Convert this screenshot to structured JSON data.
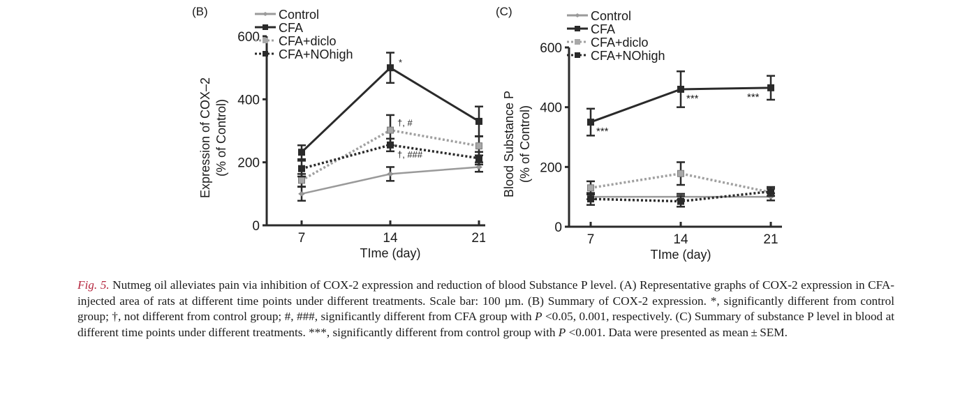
{
  "chart_data": [
    {
      "panel_label": "(B)",
      "type": "line",
      "title": "",
      "xlabel": "TIme (day)",
      "ylabel": "Expression of COX–2",
      "ylabel2": "(% of Control)",
      "x": [
        7,
        14,
        21
      ],
      "x_tick_labels": [
        "7",
        "14",
        "21"
      ],
      "y_ticks": [
        0,
        200,
        400,
        600
      ],
      "ylim": [
        0,
        600
      ],
      "grid": false,
      "legend_position": "top-left",
      "series": [
        {
          "name": "Control",
          "values": [
            100,
            163,
            185
          ],
          "errors": [
            22,
            22,
            15
          ],
          "color": "#9a9a9a",
          "line": "solid",
          "marker": "diamond"
        },
        {
          "name": "CFA",
          "values": [
            232,
            500,
            330
          ],
          "errors": [
            22,
            48,
            47
          ],
          "color": "#2a2a2a",
          "line": "solid",
          "marker": "square"
        },
        {
          "name": "CFA+diclo",
          "values": [
            143,
            302,
            252
          ],
          "errors": [
            20,
            48,
            30
          ],
          "color": "#a0a0a0",
          "line": "dotted",
          "marker": "square"
        },
        {
          "name": "CFA+NOhigh",
          "values": [
            180,
            255,
            213
          ],
          "errors": [
            25,
            20,
            20
          ],
          "color": "#2a2a2a",
          "line": "dotted",
          "marker": "square"
        }
      ],
      "annotations": [
        {
          "series": "CFA",
          "x": 14,
          "text": "*"
        },
        {
          "series": "CFA+diclo",
          "x": 14,
          "text": "†, #"
        },
        {
          "series": "CFA+NOhigh",
          "x": 14,
          "text": "†, ###"
        }
      ]
    },
    {
      "panel_label": "(C)",
      "type": "line",
      "title": "",
      "xlabel": "TIme (day)",
      "ylabel": "Blood Substance P",
      "ylabel2": "(% of Control)",
      "x": [
        7,
        14,
        21
      ],
      "x_tick_labels": [
        "7",
        "14",
        "21"
      ],
      "y_ticks": [
        0,
        200,
        400,
        600
      ],
      "ylim": [
        0,
        600
      ],
      "grid": false,
      "legend_position": "top-left",
      "series": [
        {
          "name": "Control",
          "values": [
            100,
            100,
            100
          ],
          "errors": [
            8,
            10,
            12
          ],
          "color": "#9a9a9a",
          "line": "solid",
          "marker": "diamond"
        },
        {
          "name": "CFA",
          "values": [
            350,
            460,
            465
          ],
          "errors": [
            45,
            60,
            40
          ],
          "color": "#2a2a2a",
          "line": "solid",
          "marker": "square"
        },
        {
          "name": "CFA+diclo",
          "values": [
            130,
            178,
            115
          ],
          "errors": [
            22,
            38,
            12
          ],
          "color": "#a0a0a0",
          "line": "dotted",
          "marker": "square"
        },
        {
          "name": "CFA+NOhigh",
          "values": [
            93,
            85,
            118
          ],
          "errors": [
            20,
            18,
            15
          ],
          "color": "#2a2a2a",
          "line": "dotted",
          "marker": "square"
        }
      ],
      "annotations": [
        {
          "series": "CFA",
          "x": 7,
          "text": "***"
        },
        {
          "series": "CFA",
          "x": 14,
          "text": "***"
        },
        {
          "series": "CFA",
          "x": 21,
          "text": "***"
        }
      ]
    }
  ],
  "caption": {
    "fig_ref": "Fig. 5.",
    "part1": " Nutmeg oil alleviates pain via inhibition of COX-2 expression and reduction of blood Substance P level. (A) Representative graphs of COX-2 expression in CFA-injected area of rats at different time points under different treatments. Scale bar: 100 µm. (B) Summary of COX-2 expression. *, significantly different from control group; †, not different from control group; #, ###, significantly different from CFA group with ",
    "p1": "P",
    "part2": " <0.05, 0.001, respectively. (C) Summary of substance P level in blood at different time points under different treatments. ***, significantly different from control group with ",
    "p2": "P",
    "part3": " <0.001. Data were presented as mean ± SEM."
  }
}
